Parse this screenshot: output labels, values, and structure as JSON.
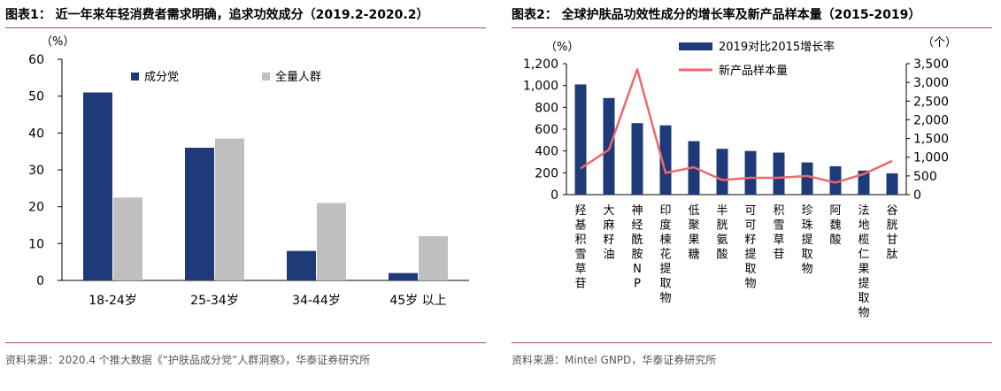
{
  "panels": [
    {
      "title": "图表1：  近一年来年轻消费者需求明确，追求功效成分（2019.2-2020.2）",
      "source": "资料来源：2020.4 个推大数据《“护肤品成分党”人群洞察》，华泰证券研究所"
    },
    {
      "title": "图表2：  全球护肤品功效性成分的增长率及新产品样本量（2015-2019）",
      "source": "资料来源：Mintel GNPD，华泰证券研究所"
    }
  ],
  "chart_data": [
    {
      "type": "bar",
      "categories": [
        "18-24岁",
        "25-34岁",
        "34-44岁",
        "45岁 以上"
      ],
      "series": [
        {
          "name": "成分党",
          "values": [
            51,
            36,
            8,
            2
          ],
          "color": "#1f3a79"
        },
        {
          "name": "全量人群",
          "values": [
            22.5,
            38.5,
            21,
            12
          ],
          "color": "#bfbfbf"
        }
      ],
      "ylabel": "（%）",
      "ylim": [
        0,
        60
      ],
      "yticks": [
        "0",
        "10",
        "20",
        "30",
        "40",
        "50",
        "60"
      ],
      "legend": "top-right",
      "grid": false
    },
    {
      "type": "bar+line",
      "categories": [
        "羟基积雪草苷",
        "大麻籽油",
        "神经酰胺NP",
        "印度楝花提取物",
        "低聚果糖",
        "半胱氨酸",
        "可可籽提取物",
        "积雪草苷",
        "珍珠提取物",
        "阿魏酸",
        "法地榄仁果提取物",
        "谷胱甘肽"
      ],
      "bar_series": {
        "name": "2019对比2015增长率",
        "values": [
          1010,
          885,
          655,
          635,
          490,
          420,
          400,
          385,
          295,
          260,
          220,
          195
        ],
        "color": "#1f3a79"
      },
      "line_series": {
        "name": "新产品样本量",
        "values": [
          700,
          1200,
          3350,
          580,
          730,
          390,
          450,
          450,
          500,
          320,
          550,
          900
        ],
        "color": "#f0676b"
      },
      "y_left_label": "（%）",
      "y_left_lim": [
        0,
        1200
      ],
      "y_left_ticks": [
        "0",
        "200",
        "400",
        "600",
        "800",
        "1,000",
        "1,200"
      ],
      "y_right_label": "（个）",
      "y_right_lim": [
        0,
        3500
      ],
      "y_right_ticks": [
        "0",
        "500",
        "1,000",
        "1,500",
        "2,000",
        "2,500",
        "3,000",
        "3,500"
      ],
      "legend": "top",
      "grid": false
    }
  ]
}
